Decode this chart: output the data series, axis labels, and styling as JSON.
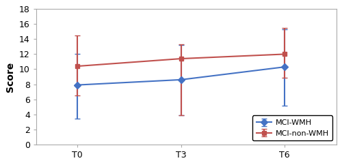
{
  "x_labels": [
    "T0",
    "T3",
    "T6"
  ],
  "x_positions": [
    0,
    1,
    2
  ],
  "mci_wmh_means": [
    7.9,
    8.6,
    10.3
  ],
  "mci_wmh_errors_upper": [
    4.1,
    4.6,
    5.0
  ],
  "mci_wmh_errors_lower": [
    4.5,
    4.7,
    5.2
  ],
  "mci_nonwmh_means": [
    10.4,
    11.4,
    12.0
  ],
  "mci_nonwmh_errors_upper": [
    4.1,
    1.9,
    3.5
  ],
  "mci_nonwmh_errors_lower": [
    3.9,
    7.5,
    3.1
  ],
  "wmh_color": "#4472C4",
  "nonwmh_color": "#C0504D",
  "ylim": [
    0,
    18
  ],
  "yticks": [
    0,
    2,
    4,
    6,
    8,
    10,
    12,
    14,
    16,
    18
  ],
  "ylabel": "Score",
  "legend_labels": [
    "MCI-WMH",
    "MCI-non-WMH"
  ],
  "marker_wmh": "D",
  "marker_nonwmh": "s",
  "marker_size": 5,
  "linewidth": 1.5,
  "capsize": 3,
  "spine_color": "#aaaaaa",
  "background_color": "#ffffff"
}
